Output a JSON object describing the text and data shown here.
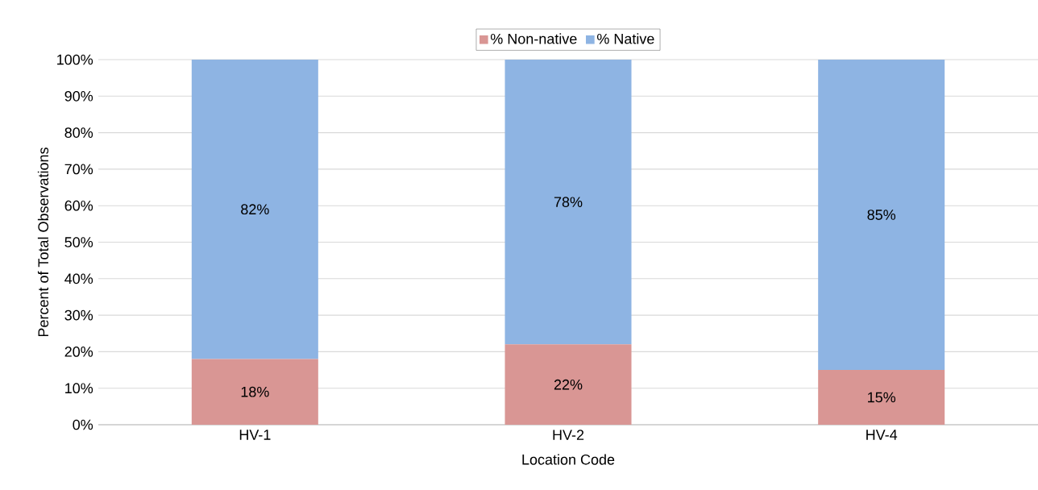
{
  "chart_data": {
    "type": "bar",
    "stacked": true,
    "xlabel": "Location Code",
    "ylabel": "Percent of Total Observations",
    "categories": [
      "HV-1",
      "HV-2",
      "HV-4"
    ],
    "series": [
      {
        "name": "% Non-native",
        "color": "#d99694",
        "values": [
          18,
          22,
          15
        ],
        "value_labels": [
          "18%",
          "22%",
          "15%"
        ]
      },
      {
        "name": "% Native",
        "color": "#8eb4e3",
        "values": [
          82,
          78,
          85
        ],
        "value_labels": [
          "82%",
          "78%",
          "85%"
        ]
      }
    ],
    "ylim": [
      0,
      100
    ],
    "yticks": [
      {
        "value": 0,
        "label": "0%"
      },
      {
        "value": 10,
        "label": "10%"
      },
      {
        "value": 20,
        "label": "20%"
      },
      {
        "value": 30,
        "label": "30%"
      },
      {
        "value": 40,
        "label": "40%"
      },
      {
        "value": 50,
        "label": "50%"
      },
      {
        "value": 60,
        "label": "60%"
      },
      {
        "value": 70,
        "label": "70%"
      },
      {
        "value": 80,
        "label": "80%"
      },
      {
        "value": 90,
        "label": "90%"
      },
      {
        "value": 100,
        "label": "100%"
      }
    ],
    "grid": "y",
    "legend": "top"
  }
}
